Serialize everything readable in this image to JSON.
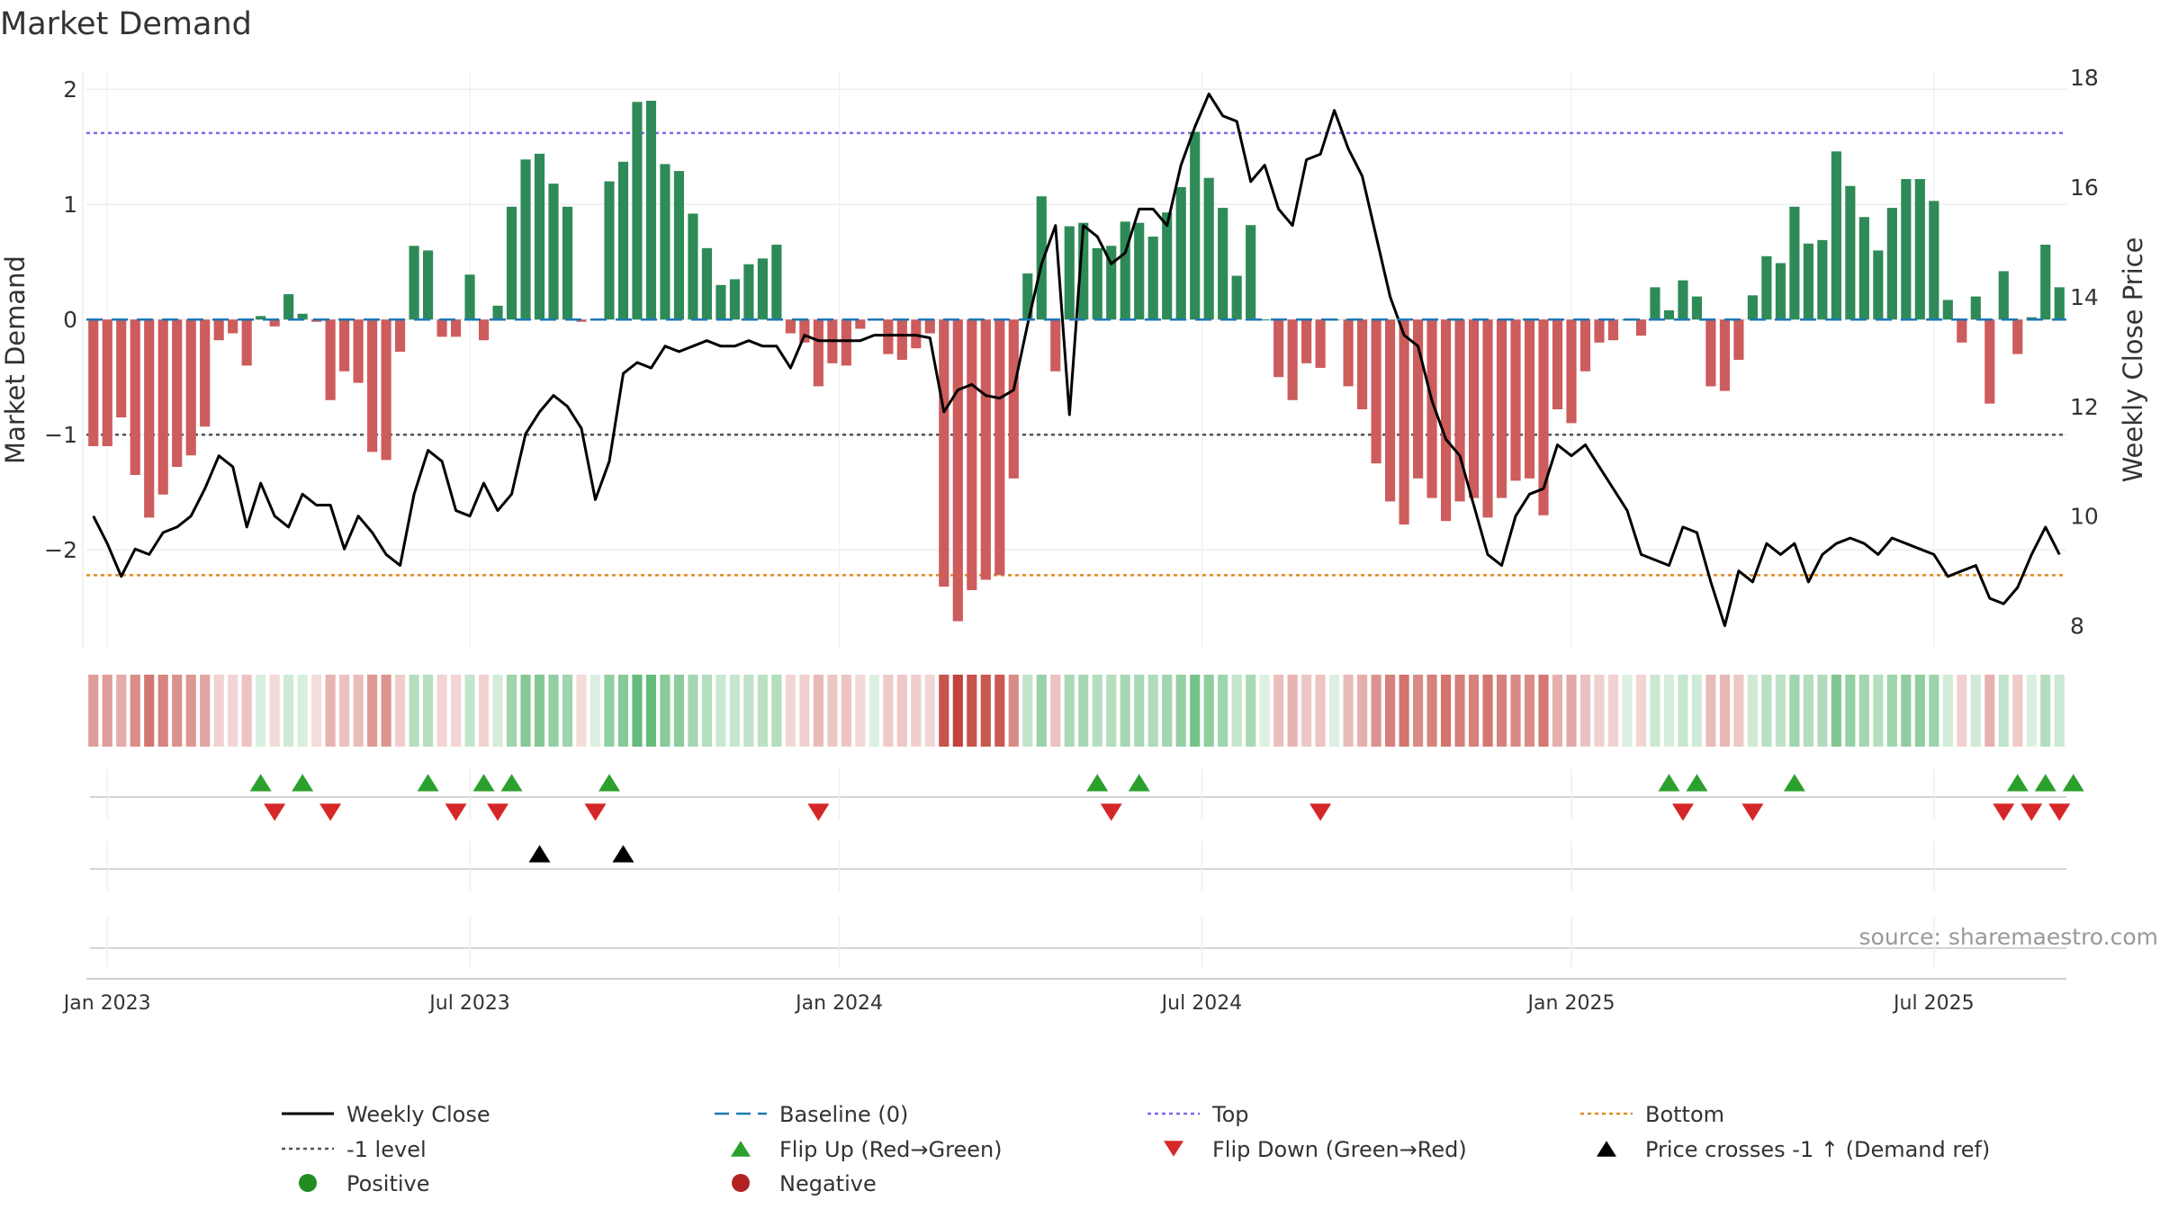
{
  "chart_data": {
    "type": "bar+line",
    "title": "Market Demand",
    "source": "source: sharemaestro.com",
    "left_axis": {
      "label": "Market Demand",
      "ylim": [
        -2.85,
        2.15
      ],
      "ticks": [
        -2,
        -1,
        0,
        1,
        2
      ],
      "tick_labels": [
        "−2",
        "−1",
        "0",
        "1",
        "2"
      ]
    },
    "right_axis": {
      "label": "Weekly Close Price",
      "ylim": [
        7.6,
        18.1
      ],
      "ticks": [
        8,
        10,
        12,
        14,
        16,
        18
      ],
      "tick_labels": [
        "8",
        "10",
        "12",
        "14",
        "16",
        "18"
      ]
    },
    "x_axis": {
      "start": "2022-12-26",
      "end": "2025-09-01",
      "week_count": 145,
      "ticks": [
        {
          "week": 1.5,
          "label": "Jan 2023"
        },
        {
          "week": 27.5,
          "label": "Jul 2023"
        },
        {
          "week": 54,
          "label": "Jan 2024"
        },
        {
          "week": 80,
          "label": "Jul 2024"
        },
        {
          "week": 106.5,
          "label": "Jan 2025"
        },
        {
          "week": 132.5,
          "label": "Jul 2025"
        }
      ]
    },
    "reference_lines": {
      "baseline": 0,
      "top": 1.62,
      "minus_one": -1,
      "bottom": -2.22
    },
    "colors": {
      "positive": "#2e8b57",
      "negative": "#cd5c5c",
      "close": "#000000",
      "baseline": "#1f77b4",
      "top": "#7b68ee",
      "minus_one": "#555555",
      "bottom": "#e08a1e",
      "flip_up": "#2ca02c",
      "flip_down": "#d62728",
      "cross": "#000000",
      "positive_dot": "#228b22",
      "negative_dot": "#b22222"
    },
    "demand": [
      -1.1,
      -1.1,
      -0.85,
      -1.35,
      -1.72,
      -1.52,
      -1.28,
      -1.18,
      -0.93,
      -0.18,
      -0.12,
      -0.4,
      0.03,
      -0.06,
      0.22,
      0.05,
      -0.02,
      -0.7,
      -0.45,
      -0.55,
      -1.15,
      -1.22,
      -0.28,
      0.64,
      0.6,
      -0.15,
      -0.15,
      0.39,
      -0.18,
      0.12,
      0.98,
      1.39,
      1.44,
      1.18,
      0.98,
      -0.02,
      0.0,
      1.2,
      1.37,
      1.89,
      1.9,
      1.35,
      1.29,
      0.92,
      0.62,
      0.3,
      0.35,
      0.48,
      0.53,
      0.65,
      -0.12,
      -0.2,
      -0.58,
      -0.38,
      -0.4,
      -0.08,
      0.0,
      -0.3,
      -0.35,
      -0.25,
      -0.12,
      -2.32,
      -2.62,
      -2.35,
      -2.26,
      -2.22,
      -1.38,
      0.4,
      1.07,
      -0.45,
      0.81,
      0.84,
      0.62,
      0.64,
      0.85,
      0.84,
      0.72,
      0.93,
      1.15,
      1.63,
      1.23,
      0.97,
      0.38,
      0.82,
      0.0,
      -0.5,
      -0.7,
      -0.38,
      -0.42,
      0.0,
      -0.58,
      -0.78,
      -1.25,
      -1.58,
      -1.78,
      -1.38,
      -1.55,
      -1.75,
      -1.58,
      -1.55,
      -1.72,
      -1.55,
      -1.4,
      -1.38,
      -1.7,
      -0.78,
      -0.9,
      -0.45,
      -0.2,
      -0.18,
      0.0,
      -0.14,
      0.28,
      0.08,
      0.34,
      0.2,
      -0.58,
      -0.62,
      -0.35,
      0.21,
      0.55,
      0.49,
      0.98,
      0.66,
      0.69,
      1.46,
      1.16,
      0.89,
      0.6,
      0.97,
      1.22,
      1.22,
      1.03,
      0.17,
      -0.2,
      0.2,
      -0.73,
      0.42,
      -0.3,
      0.02,
      0.65,
      0.28
    ],
    "weekly_close": [
      10.0,
      9.5,
      8.9,
      9.4,
      9.3,
      9.7,
      9.8,
      10.0,
      10.5,
      11.1,
      10.9,
      9.8,
      10.6,
      10.0,
      9.8,
      10.4,
      10.2,
      10.2,
      9.4,
      10.0,
      9.7,
      9.3,
      9.1,
      10.4,
      11.2,
      11.0,
      10.1,
      10.0,
      10.6,
      10.1,
      10.4,
      11.5,
      11.9,
      12.2,
      12.0,
      11.6,
      10.3,
      11.0,
      12.6,
      12.8,
      12.7,
      13.1,
      13.0,
      13.1,
      13.2,
      13.1,
      13.1,
      13.2,
      13.1,
      13.1,
      12.7,
      13.3,
      13.2,
      13.2,
      13.2,
      13.2,
      13.3,
      13.3,
      13.3,
      13.3,
      13.25,
      11.9,
      12.3,
      12.4,
      12.2,
      12.15,
      12.3,
      13.5,
      14.6,
      15.3,
      11.85,
      15.3,
      15.1,
      14.6,
      14.8,
      15.6,
      15.6,
      15.3,
      16.4,
      17.1,
      17.7,
      17.3,
      17.2,
      16.1,
      16.4,
      15.6,
      15.3,
      16.5,
      16.6,
      17.4,
      16.7,
      16.2,
      15.1,
      14.0,
      13.3,
      13.1,
      12.1,
      11.4,
      11.1,
      10.2,
      9.3,
      9.1,
      10.0,
      10.4,
      10.5,
      11.3,
      11.1,
      11.3,
      10.9,
      10.5,
      10.1,
      9.3,
      9.2,
      9.1,
      9.8,
      9.7,
      8.8,
      8.0,
      9.0,
      8.8,
      9.5,
      9.3,
      9.5,
      8.8,
      9.3,
      9.5,
      9.6,
      9.5,
      9.3,
      9.6,
      9.5,
      9.4,
      9.3,
      8.9,
      9.0,
      9.1,
      8.5,
      8.4,
      8.7,
      9.3,
      9.8,
      9.3
    ],
    "flip_up_weeks": [
      12,
      15,
      24,
      28,
      30,
      37,
      72,
      75,
      113,
      115,
      122,
      138,
      140,
      142
    ],
    "flip_down_weeks": [
      13,
      17,
      26,
      29,
      36,
      52,
      73,
      88,
      114,
      119,
      137,
      139,
      141
    ],
    "cross_weeks": [
      32,
      38
    ],
    "legend": [
      {
        "key": "close",
        "style": "line",
        "label": "Weekly Close"
      },
      {
        "key": "baseline",
        "style": "dashed",
        "label": "Baseline (0)"
      },
      {
        "key": "top",
        "style": "dotted",
        "label": "Top"
      },
      {
        "key": "bottom",
        "style": "dotted",
        "label": "Bottom"
      },
      {
        "key": "minus_one",
        "style": "dotted",
        "label": "-1 level"
      },
      {
        "key": "flip_up",
        "style": "tri-up",
        "label": "Flip Up (Red→Green)"
      },
      {
        "key": "flip_down",
        "style": "tri-down",
        "label": "Flip Down (Green→Red)"
      },
      {
        "key": "cross",
        "style": "tri-up",
        "label": "Price crosses -1 ↑ (Demand ref)"
      },
      {
        "key": "positive_dot",
        "style": "dot",
        "label": "Positive"
      },
      {
        "key": "negative_dot",
        "style": "dot",
        "label": "Negative"
      }
    ]
  }
}
